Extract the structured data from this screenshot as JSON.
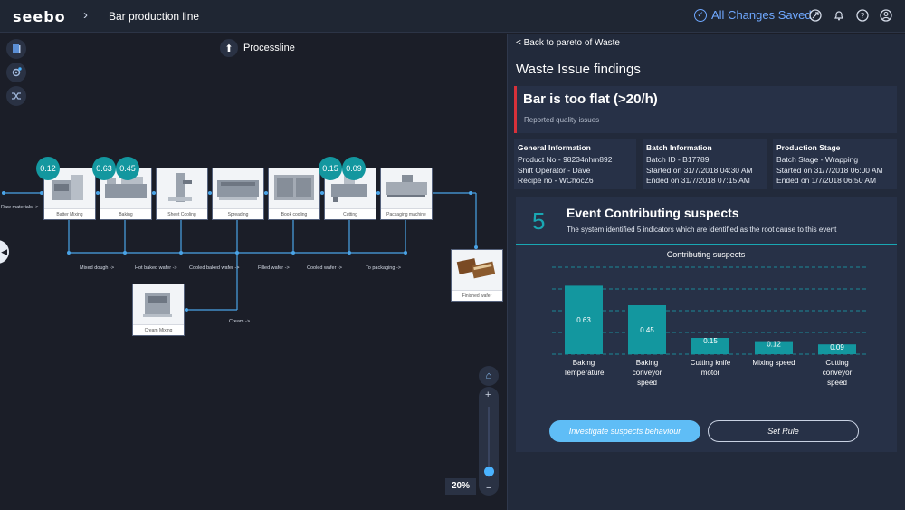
{
  "header": {
    "logo": "seebo",
    "breadcrumb_separator": "›",
    "breadcrumb": "Bar production line",
    "saved_status": "All Changes Saved",
    "icons": [
      "check-circle-icon",
      "rocket-icon",
      "bell-icon",
      "help-icon",
      "user-icon"
    ]
  },
  "canvas": {
    "title": "Processline",
    "tools": [
      "book-icon",
      "settings-icon",
      "shuffle-icon"
    ],
    "raw_materials": "Raw materials ->",
    "machines": [
      {
        "id": "batter",
        "label": "Batter Mixing"
      },
      {
        "id": "baking",
        "label": "Baking"
      },
      {
        "id": "sheet",
        "label": "Sheet Cooling"
      },
      {
        "id": "spreading",
        "label": "Spreading"
      },
      {
        "id": "book",
        "label": "Book cooling"
      },
      {
        "id": "cutting",
        "label": "Cutting"
      },
      {
        "id": "packaging",
        "label": "Packaging machine"
      },
      {
        "id": "cream",
        "label": "Cream Mixing"
      },
      {
        "id": "finished",
        "label": "Finished wafer"
      }
    ],
    "scores": [
      "0.12",
      "0.63",
      "0.45",
      "0.15",
      "0.09"
    ],
    "flow_labels": [
      "Mixed dough ->",
      "Hot baked wafer ->",
      "Cooled baked wafer ->",
      "Filled wafer ->",
      "Cooled wafer ->",
      "To packaging ->",
      "Cream ->"
    ],
    "zoom": {
      "level": "20%",
      "plus": "+",
      "minus": "−"
    }
  },
  "panel": {
    "back_link": "< Back to pareto of Waste",
    "title": "Waste Issue findings",
    "issue": {
      "title": "Bar is too flat (>20/h)",
      "subtitle": "Reported quality issues",
      "accent": "#d8313a"
    },
    "general": {
      "title": "General Information",
      "lines": [
        "Product No - 98234nhm892",
        "Shift Operator - Dave",
        "Recipe no - WChocZ6"
      ]
    },
    "batch": {
      "title": "Batch Information",
      "lines": [
        "Batch ID - B17789",
        "Started on 31/7/2018 04:30 AM",
        "Ended on 31/7/2018 07:15 AM"
      ]
    },
    "stage": {
      "title": "Production Stage",
      "lines": [
        "Batch Stage - Wrapping",
        "Started on 31/7/2018 06:00 AM",
        "Ended on 1/7/2018 06:50 AM"
      ]
    },
    "suspects": {
      "count": "5",
      "title": "Event Contributing suspects",
      "subtitle": "The system identified 5 indicators which are identified as the root cause to this event",
      "investigate_label": "Investigate suspects behaviour",
      "set_rule_label": "Set Rule"
    }
  },
  "chart_data": {
    "type": "bar",
    "title": "Contributing suspects",
    "categories": [
      [
        "Baking",
        "Temperature"
      ],
      [
        "Baking",
        "conveyor",
        "speed"
      ],
      [
        "Cutting knife",
        "motor"
      ],
      [
        "Mixing speed"
      ],
      [
        "Cutting",
        "conveyor",
        "speed"
      ]
    ],
    "values": [
      0.63,
      0.45,
      0.15,
      0.12,
      0.09
    ],
    "value_labels": [
      "0.63",
      "0.45",
      "0.15",
      "0.12",
      "0.09"
    ],
    "ylim": [
      0,
      0.8
    ],
    "grid": true,
    "bar_color": "#13979f"
  }
}
